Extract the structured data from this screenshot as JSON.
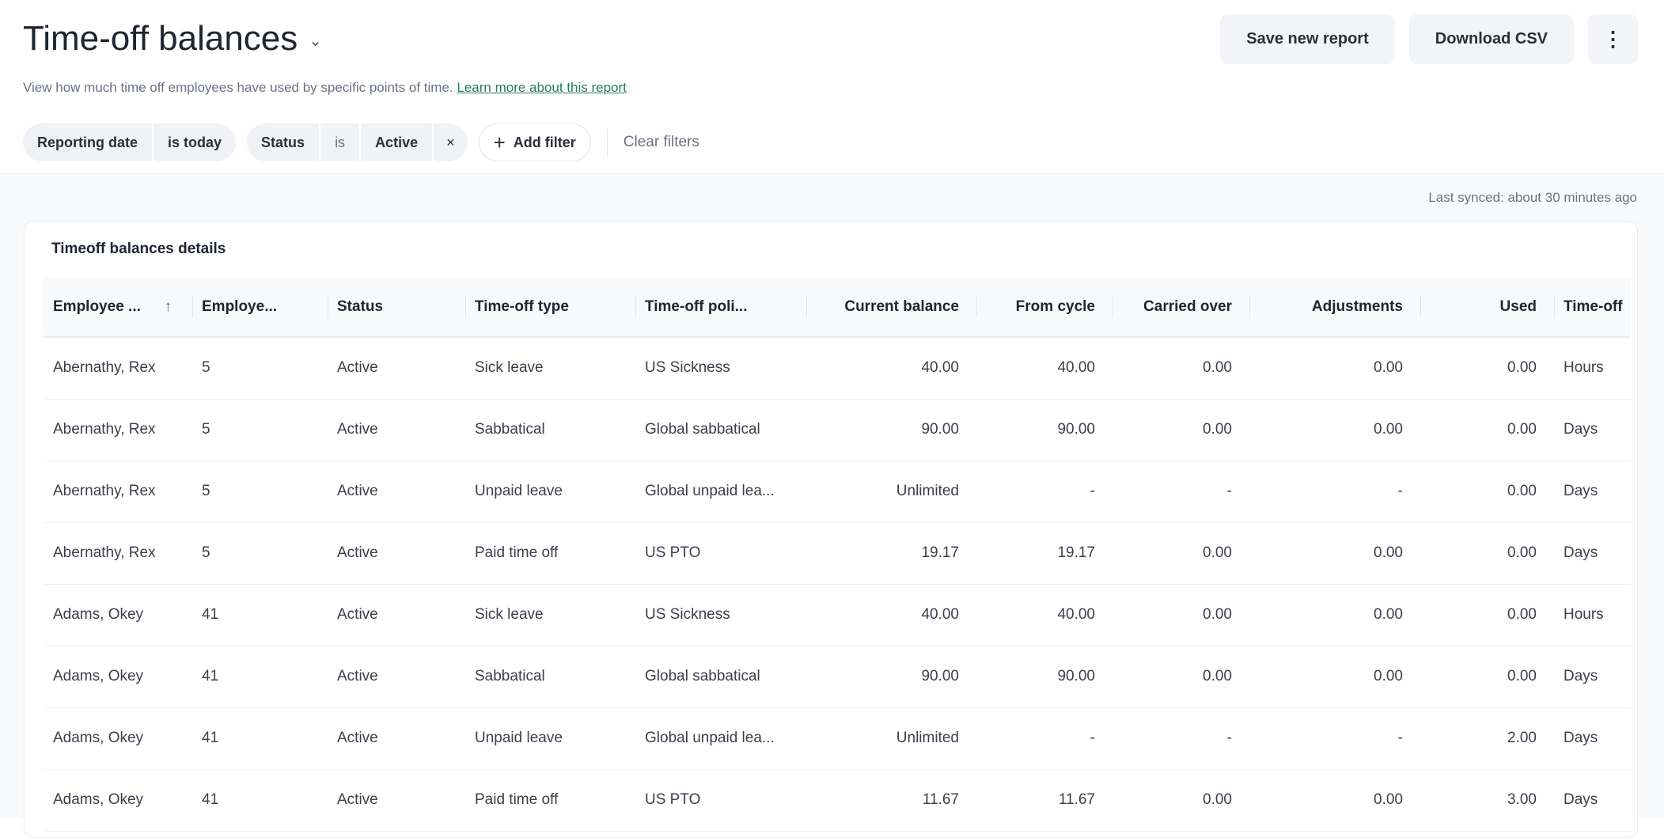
{
  "header": {
    "title": "Time-off balances",
    "subtitle": "View how much time off employees have used by specific points of time.",
    "learn_more": "Learn more about this report",
    "save_label": "Save new report",
    "download_label": "Download CSV",
    "more_icon": "more-vertical-icon"
  },
  "filters": [
    {
      "field": "Reporting date",
      "value": "is today"
    },
    {
      "field": "Status",
      "op": "is",
      "value": "Active",
      "remove": "×"
    }
  ],
  "add_filter": "Add filter",
  "clear_filters": "Clear filters",
  "last_synced": "Last synced: about 30 minutes ago",
  "table": {
    "title": "Timeoff balances details",
    "sort": {
      "column": 0,
      "direction": "ascending"
    },
    "columns": [
      "Employee ...",
      "Employe...",
      "Status",
      "Time-off type",
      "Time-off poli...",
      "Current balance",
      "From cycle",
      "Carried over",
      "Adjustments",
      "Used",
      "Time-off"
    ],
    "rows": [
      [
        "Abernathy, Rex",
        "5",
        "Active",
        "Sick leave",
        "US Sickness",
        "40.00",
        "40.00",
        "0.00",
        "0.00",
        "0.00",
        "Hours"
      ],
      [
        "Abernathy, Rex",
        "5",
        "Active",
        "Sabbatical",
        "Global sabbatical",
        "90.00",
        "90.00",
        "0.00",
        "0.00",
        "0.00",
        "Days"
      ],
      [
        "Abernathy, Rex",
        "5",
        "Active",
        "Unpaid leave",
        "Global unpaid lea...",
        "Unlimited",
        "-",
        "-",
        "-",
        "0.00",
        "Days"
      ],
      [
        "Abernathy, Rex",
        "5",
        "Active",
        "Paid time off",
        "US PTO",
        "19.17",
        "19.17",
        "0.00",
        "0.00",
        "0.00",
        "Days"
      ],
      [
        "Adams, Okey",
        "41",
        "Active",
        "Sick leave",
        "US Sickness",
        "40.00",
        "40.00",
        "0.00",
        "0.00",
        "0.00",
        "Hours"
      ],
      [
        "Adams, Okey",
        "41",
        "Active",
        "Sabbatical",
        "Global sabbatical",
        "90.00",
        "90.00",
        "0.00",
        "0.00",
        "0.00",
        "Days"
      ],
      [
        "Adams, Okey",
        "41",
        "Active",
        "Unpaid leave",
        "Global unpaid lea...",
        "Unlimited",
        "-",
        "-",
        "-",
        "2.00",
        "Days"
      ],
      [
        "Adams, Okey",
        "41",
        "Active",
        "Paid time off",
        "US PTO",
        "11.67",
        "11.67",
        "0.00",
        "0.00",
        "3.00",
        "Days"
      ]
    ]
  }
}
